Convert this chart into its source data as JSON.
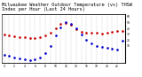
{
  "title": "Milwaukee Weather Outdoor Temperature (vs) THSW Index per Hour (Last 24 Hours)",
  "title_fontsize": 3.8,
  "background_color": "#ffffff",
  "plot_bg_color": "#ffffff",
  "grid_color": "#888888",
  "hours": [
    0,
    1,
    2,
    3,
    4,
    5,
    6,
    7,
    8,
    9,
    10,
    11,
    12,
    13,
    14,
    15,
    16,
    17,
    18,
    19,
    20,
    21,
    22,
    23
  ],
  "temp": [
    42,
    41,
    40,
    39,
    39,
    38,
    38,
    39,
    41,
    44,
    49,
    54,
    55,
    53,
    48,
    45,
    44,
    44,
    44,
    43,
    44,
    45,
    46,
    46
  ],
  "thsw": [
    -5,
    -8,
    -10,
    -12,
    -14,
    -15,
    -13,
    -10,
    -2,
    10,
    28,
    42,
    50,
    48,
    40,
    30,
    20,
    14,
    10,
    8,
    6,
    5,
    4,
    18
  ],
  "temp_color": "#cc0000",
  "thsw_color": "#0000cc",
  "ylim": [
    10,
    65
  ],
  "thsw_ylim": [
    -20,
    65
  ],
  "marker_size": 1.8,
  "line_width": 0.6,
  "right_ticks": [
    10,
    20,
    30,
    40,
    50,
    60
  ],
  "right_tick_labels": [
    "10",
    "20",
    "30",
    "40",
    "50",
    "60"
  ],
  "xtick_every": 2
}
